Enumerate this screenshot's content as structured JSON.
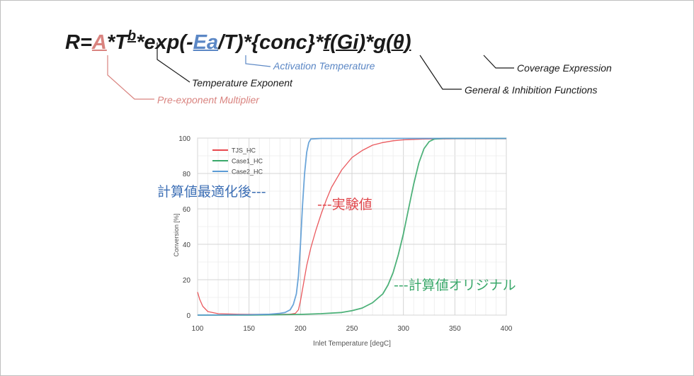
{
  "equation": {
    "p1": "R=",
    "A": "A",
    "p2": "*T",
    "b": "b",
    "p3": "*exp(-",
    "Ea": "Ea",
    "p4": "/T)*{conc}*",
    "f": "f(Gi)",
    "p5": "*",
    "g": "g(θ)"
  },
  "annotations": {
    "activation": "Activation Temperature",
    "coverage": "Coverage Expression",
    "temperature_exponent": "Temperature Exponent",
    "general_inhibition": "General & Inhibition Functions",
    "pre_exponent": "Pre-exponent Multiplier"
  },
  "overlays": {
    "optimized": "計算値最適化後---",
    "experimental": "---実験値",
    "original": "---計算値オリジナル"
  },
  "colors": {
    "experimental": "#e8474d",
    "original": "#3aa86a",
    "optimized": "#5b9bd5",
    "grid": "#d4d4d4",
    "annotation_red": "#d9837f",
    "annotation_blue": "#5b87c5"
  },
  "chart_data": {
    "type": "line",
    "xlabel": "Inlet Temperature [degC]",
    "ylabel": "Conversion [%]",
    "xlim": [
      100,
      400
    ],
    "ylim": [
      0,
      100
    ],
    "xticks": [
      "100",
      "150",
      "200",
      "250",
      "300",
      "350",
      "400"
    ],
    "yticks": [
      "0",
      "20",
      "40",
      "60",
      "80",
      "100"
    ],
    "grid": true,
    "legend_position": "top-left",
    "series": [
      {
        "name": "TJS_HC",
        "x": [
          100,
          102,
          105,
          110,
          120,
          140,
          160,
          180,
          190,
          195,
          198,
          200,
          203,
          206,
          210,
          215,
          220,
          225,
          230,
          240,
          250,
          260,
          270,
          280,
          290,
          300,
          320,
          350,
          400
        ],
        "y": [
          13,
          9,
          5,
          2,
          0.8,
          0.5,
          0.4,
          0.4,
          0.5,
          1,
          3,
          8,
          18,
          28,
          38,
          48,
          57,
          65,
          72,
          82,
          89,
          93,
          96,
          97.5,
          98.5,
          99,
          99.5,
          99.6,
          99.6
        ]
      },
      {
        "name": "Case1_HC",
        "x": [
          100,
          150,
          200,
          220,
          240,
          250,
          260,
          270,
          280,
          285,
          290,
          295,
          300,
          305,
          310,
          315,
          320,
          325,
          330,
          340,
          350,
          400
        ],
        "y": [
          0,
          0,
          0.4,
          0.8,
          1.5,
          2.5,
          4,
          7,
          12,
          17,
          24,
          34,
          46,
          60,
          74,
          86,
          94,
          98,
          99.5,
          99.8,
          99.8,
          99.8
        ]
      },
      {
        "name": "Case2_HC",
        "x": [
          100,
          150,
          170,
          180,
          185,
          190,
          193,
          196,
          198,
          200,
          202,
          204,
          206,
          208,
          210,
          220,
          400
        ],
        "y": [
          0,
          0.2,
          0.5,
          1,
          1.5,
          3,
          6,
          12,
          22,
          40,
          62,
          80,
          92,
          97.5,
          99.5,
          99.8,
          99.8
        ]
      }
    ]
  }
}
